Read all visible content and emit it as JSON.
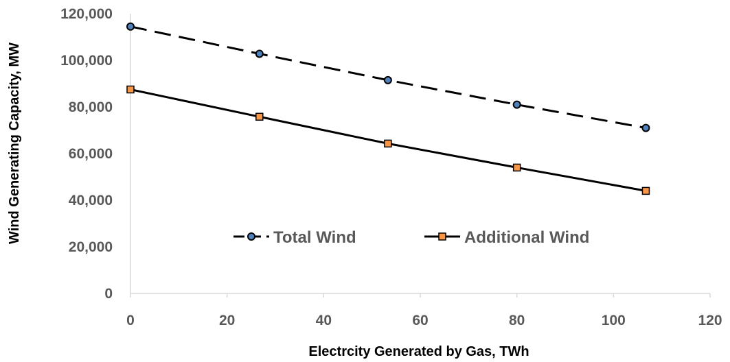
{
  "chart_data": {
    "type": "line",
    "title": "",
    "xlabel": "Electrcity Generated by Gas, TWh",
    "ylabel": "Wind Generating Capacity, MW",
    "xlim": [
      0,
      120
    ],
    "ylim": [
      0,
      120000
    ],
    "x_ticks": [
      "0",
      "20",
      "40",
      "60",
      "80",
      "100",
      "120"
    ],
    "y_ticks": [
      "0",
      "20,000",
      "40,000",
      "60,000",
      "80,000",
      "100,000",
      "120,000"
    ],
    "grid": false,
    "legend_position": "inside-bottom",
    "series": [
      {
        "name": "Total Wind",
        "line_style": "dashed",
        "marker": "circle",
        "line_color": "#000000",
        "marker_color": "#4f81bd",
        "x": [
          0,
          26.7,
          53.3,
          80,
          106.7
        ],
        "y": [
          114500,
          102800,
          91500,
          81000,
          71000
        ]
      },
      {
        "name": "Additional Wind",
        "line_style": "solid",
        "marker": "square",
        "line_color": "#000000",
        "marker_color": "#f79646",
        "x": [
          0,
          26.7,
          53.3,
          80,
          106.7
        ],
        "y": [
          87500,
          75800,
          64300,
          54000,
          44000
        ]
      }
    ]
  }
}
